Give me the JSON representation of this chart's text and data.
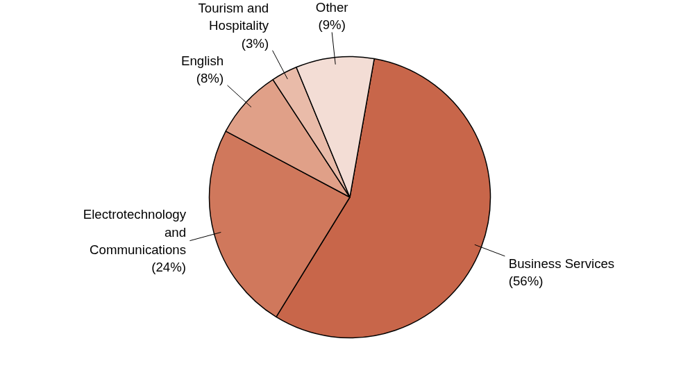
{
  "chart_data": {
    "type": "pie",
    "categories": [
      "Business Services",
      "Electrotechnology and Communications",
      "English",
      "Tourism and Hospitality",
      "Other"
    ],
    "values": [
      56,
      24,
      8,
      3,
      9
    ],
    "colors": [
      "#c8664a",
      "#d0785c",
      "#e0a088",
      "#e9bba9",
      "#f3ddd5"
    ],
    "value_labels": [
      "(56%)",
      "(24%)",
      "(8%)",
      "(3%)",
      "(9%)"
    ]
  }
}
